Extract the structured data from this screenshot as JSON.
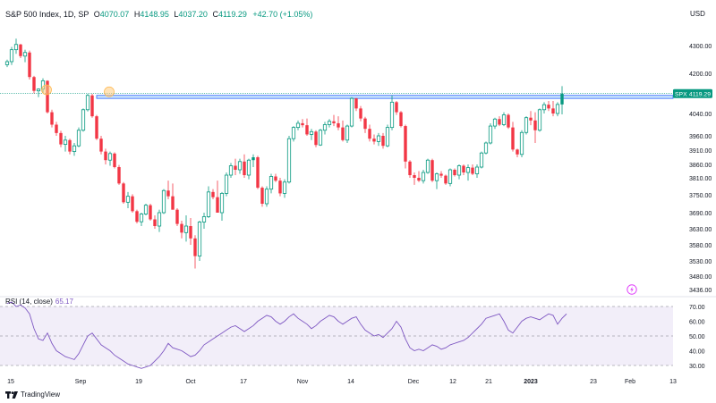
{
  "header": {
    "title": "S&P 500 Index, 1D, SP",
    "open_label": "O",
    "open": "4070.07",
    "high_label": "H",
    "high": "4148.95",
    "low_label": "L",
    "low": "4037.20",
    "close_label": "C",
    "close": "4119.29",
    "change": "+42.70 (+1.05%)"
  },
  "currency": "USD",
  "price_badge": {
    "symbol": "SPX",
    "value": "4119.29"
  },
  "rsi_header": {
    "label": "RSI (14, close)",
    "value": "65.17"
  },
  "branding": {
    "text": "TradingView"
  },
  "colors": {
    "up": "#089981",
    "down": "#f23645",
    "rsi_line": "#7e57c2",
    "rsi_band": "#ede7f6",
    "zone": "#bbdefb",
    "zone_border": "#2962ff",
    "marker": "#ffcc80"
  },
  "chart_data": [
    {
      "type": "candlestick",
      "title": "S&P 500 Index, 1D, SP",
      "y_axis_ticks": [
        "4300.00",
        "4200.00",
        "4040.00",
        "3960.00",
        "3910.00",
        "3860.00",
        "3810.00",
        "3750.00",
        "3690.00",
        "3630.00",
        "3580.00",
        "3530.00",
        "3480.00",
        "3436.00"
      ],
      "x_axis_ticks": [
        "15",
        "Sep",
        "19",
        "Oct",
        "17",
        "Nov",
        "14",
        "Dec",
        "12",
        "21",
        "2023",
        "23",
        "Feb",
        "13"
      ],
      "ylim": [
        3436,
        4320
      ],
      "resistance_zone": [
        4100,
        4112
      ],
      "current_price": 4119.29,
      "candles": [
        [
          4231,
          4249,
          4222,
          4242
        ],
        [
          4242,
          4295,
          4230,
          4285
        ],
        [
          4285,
          4325,
          4270,
          4304
        ],
        [
          4304,
          4306,
          4255,
          4262
        ],
        [
          4262,
          4285,
          4240,
          4275
        ],
        [
          4275,
          4282,
          4175,
          4185
        ],
        [
          4185,
          4190,
          4120,
          4130
        ],
        [
          4130,
          4140,
          4105,
          4137
        ],
        [
          4137,
          4180,
          4120,
          4170
        ],
        [
          4170,
          4172,
          4040,
          4045
        ],
        [
          4045,
          4055,
          3990,
          4000
        ],
        [
          4000,
          4010,
          3960,
          3970
        ],
        [
          3970,
          3978,
          3920,
          3930
        ],
        [
          3930,
          3960,
          3905,
          3945
        ],
        [
          3945,
          3950,
          3895,
          3905
        ],
        [
          3905,
          3935,
          3890,
          3925
        ],
        [
          3925,
          3990,
          3920,
          3980
        ],
        [
          3980,
          4060,
          3975,
          4055
        ],
        [
          4055,
          4118,
          4048,
          4112
        ],
        [
          4112,
          4118,
          4025,
          4030
        ],
        [
          4030,
          4035,
          3945,
          3950
        ],
        [
          3950,
          3960,
          3895,
          3905
        ],
        [
          3905,
          3915,
          3860,
          3875
        ],
        [
          3875,
          3905,
          3855,
          3898
        ],
        [
          3898,
          3902,
          3845,
          3850
        ],
        [
          3850,
          3858,
          3785,
          3790
        ],
        [
          3790,
          3795,
          3720,
          3725
        ],
        [
          3725,
          3760,
          3705,
          3745
        ],
        [
          3745,
          3752,
          3690,
          3695
        ],
        [
          3695,
          3700,
          3650,
          3656
        ],
        [
          3656,
          3690,
          3640,
          3685
        ],
        [
          3685,
          3720,
          3680,
          3715
        ],
        [
          3715,
          3720,
          3660,
          3665
        ],
        [
          3665,
          3680,
          3630,
          3640
        ],
        [
          3640,
          3700,
          3620,
          3690
        ],
        [
          3690,
          3770,
          3685,
          3765
        ],
        [
          3765,
          3800,
          3735,
          3745
        ],
        [
          3745,
          3790,
          3700,
          3700
        ],
        [
          3700,
          3705,
          3640,
          3648
        ],
        [
          3648,
          3660,
          3600,
          3618
        ],
        [
          3618,
          3680,
          3590,
          3640
        ],
        [
          3640,
          3670,
          3580,
          3600
        ],
        [
          3600,
          3610,
          3505,
          3545
        ],
        [
          3545,
          3660,
          3530,
          3655
        ],
        [
          3655,
          3690,
          3630,
          3675
        ],
        [
          3675,
          3780,
          3670,
          3760
        ],
        [
          3760,
          3770,
          3735,
          3742
        ],
        [
          3742,
          3800,
          3695,
          3690
        ],
        [
          3690,
          3760,
          3660,
          3755
        ],
        [
          3755,
          3830,
          3745,
          3820
        ],
        [
          3820,
          3865,
          3810,
          3855
        ],
        [
          3855,
          3880,
          3820,
          3840
        ],
        [
          3840,
          3880,
          3825,
          3870
        ],
        [
          3870,
          3895,
          3810,
          3820
        ],
        [
          3820,
          3880,
          3805,
          3875
        ],
        [
          3875,
          3895,
          3850,
          3885
        ],
        [
          3885,
          3890,
          3770,
          3775
        ],
        [
          3775,
          3780,
          3710,
          3720
        ],
        [
          3720,
          3780,
          3710,
          3770
        ],
        [
          3770,
          3825,
          3755,
          3815
        ],
        [
          3815,
          3825,
          3795,
          3800
        ],
        [
          3800,
          3810,
          3745,
          3755
        ],
        [
          3755,
          3805,
          3740,
          3795
        ],
        [
          3795,
          3960,
          3790,
          3950
        ],
        [
          3950,
          3995,
          3940,
          3990
        ],
        [
          3990,
          4015,
          3980,
          4005
        ],
        [
          4005,
          4020,
          3990,
          3998
        ],
        [
          3998,
          4022,
          3960,
          3965
        ],
        [
          3965,
          3985,
          3945,
          3975
        ],
        [
          3975,
          3980,
          3920,
          3928
        ],
        [
          3928,
          3985,
          3925,
          3980
        ],
        [
          3980,
          4010,
          3965,
          4000
        ],
        [
          4000,
          4020,
          3990,
          4012
        ],
        [
          4012,
          4035,
          3995,
          4005
        ],
        [
          4005,
          4030,
          3980,
          3990
        ],
        [
          3990,
          4015,
          3940,
          3945
        ],
        [
          3945,
          4000,
          3935,
          3995
        ],
        [
          3995,
          4105,
          3990,
          4100
        ],
        [
          4100,
          4102,
          4050,
          4060
        ],
        [
          4060,
          4070,
          4012,
          4022
        ],
        [
          4022,
          4028,
          3970,
          3985
        ],
        [
          3985,
          4000,
          3940,
          3950
        ],
        [
          3950,
          3965,
          3930,
          3940
        ],
        [
          3940,
          3970,
          3925,
          3960
        ],
        [
          3960,
          3970,
          3915,
          3925
        ],
        [
          3925,
          4000,
          3920,
          3990
        ],
        [
          3990,
          4112,
          3980,
          4085
        ],
        [
          4085,
          4090,
          4035,
          4045
        ],
        [
          4045,
          4050,
          3990,
          3995
        ],
        [
          3995,
          4000,
          3845,
          3870
        ],
        [
          3870,
          3875,
          3810,
          3820
        ],
        [
          3820,
          3830,
          3785,
          3810
        ],
        [
          3810,
          3835,
          3795,
          3800
        ],
        [
          3800,
          3840,
          3790,
          3830
        ],
        [
          3830,
          3880,
          3825,
          3875
        ],
        [
          3875,
          3880,
          3795,
          3800
        ],
        [
          3800,
          3830,
          3770,
          3825
        ],
        [
          3825,
          3835,
          3810,
          3818
        ],
        [
          3818,
          3822,
          3785,
          3790
        ],
        [
          3790,
          3845,
          3780,
          3840
        ],
        [
          3840,
          3845,
          3815,
          3820
        ],
        [
          3820,
          3860,
          3805,
          3855
        ],
        [
          3855,
          3860,
          3820,
          3830
        ],
        [
          3830,
          3860,
          3800,
          3848
        ],
        [
          3848,
          3860,
          3820,
          3825
        ],
        [
          3825,
          3860,
          3810,
          3850
        ],
        [
          3850,
          3905,
          3845,
          3900
        ],
        [
          3900,
          3940,
          3895,
          3935
        ],
        [
          3935,
          4005,
          3930,
          3995
        ],
        [
          3995,
          4025,
          3985,
          4020
        ],
        [
          4020,
          4030,
          3995,
          4000
        ],
        [
          4000,
          4045,
          3995,
          4035
        ],
        [
          4035,
          4040,
          3985,
          3990
        ],
        [
          3990,
          4010,
          3905,
          3912
        ],
        [
          3912,
          3915,
          3885,
          3895
        ],
        [
          3895,
          3980,
          3885,
          3972
        ],
        [
          3972,
          4030,
          3965,
          4025
        ],
        [
          4025,
          4050,
          3998,
          4015
        ],
        [
          4015,
          4045,
          3935,
          3980
        ],
        [
          3980,
          4060,
          3975,
          4055
        ],
        [
          4055,
          4085,
          4040,
          4075
        ],
        [
          4075,
          4090,
          4050,
          4060
        ],
        [
          4060,
          4090,
          4030,
          4040
        ],
        [
          4040,
          4085,
          4030,
          4076
        ],
        [
          4076,
          4149,
          4037,
          4119
        ]
      ]
    },
    {
      "type": "line",
      "title": "RSI (14, close)",
      "y_axis_ticks": [
        "70.00",
        "60.00",
        "50.00",
        "40.00",
        "30.00"
      ],
      "ylim": [
        25,
        75
      ],
      "levels": [
        70,
        50,
        30
      ],
      "series": [
        {
          "values": [
            72,
            73,
            70,
            71,
            69,
            65,
            55,
            48,
            47,
            52,
            45,
            40,
            38,
            36,
            35,
            34,
            38,
            44,
            50,
            52,
            48,
            44,
            42,
            40,
            37,
            35,
            33,
            31,
            30,
            29,
            28,
            29,
            30,
            33,
            36,
            40,
            45,
            42,
            41,
            40,
            38,
            36,
            37,
            40,
            44,
            46,
            48,
            50,
            52,
            54,
            56,
            57,
            55,
            53,
            55,
            57,
            60,
            62,
            64,
            63,
            60,
            58,
            60,
            63,
            65,
            62,
            60,
            58,
            55,
            57,
            60,
            62,
            64,
            63,
            60,
            58,
            60,
            62,
            63,
            58,
            54,
            52,
            50,
            51,
            49,
            52,
            55,
            60,
            56,
            48,
            42,
            40,
            41,
            40,
            42,
            44,
            43,
            41,
            42,
            44,
            45,
            46,
            47,
            49,
            52,
            55,
            58,
            62,
            63,
            64,
            65,
            60,
            54,
            52,
            56,
            60,
            62,
            63,
            62,
            61,
            63,
            65,
            64,
            58,
            62,
            65
          ]
        }
      ]
    }
  ]
}
